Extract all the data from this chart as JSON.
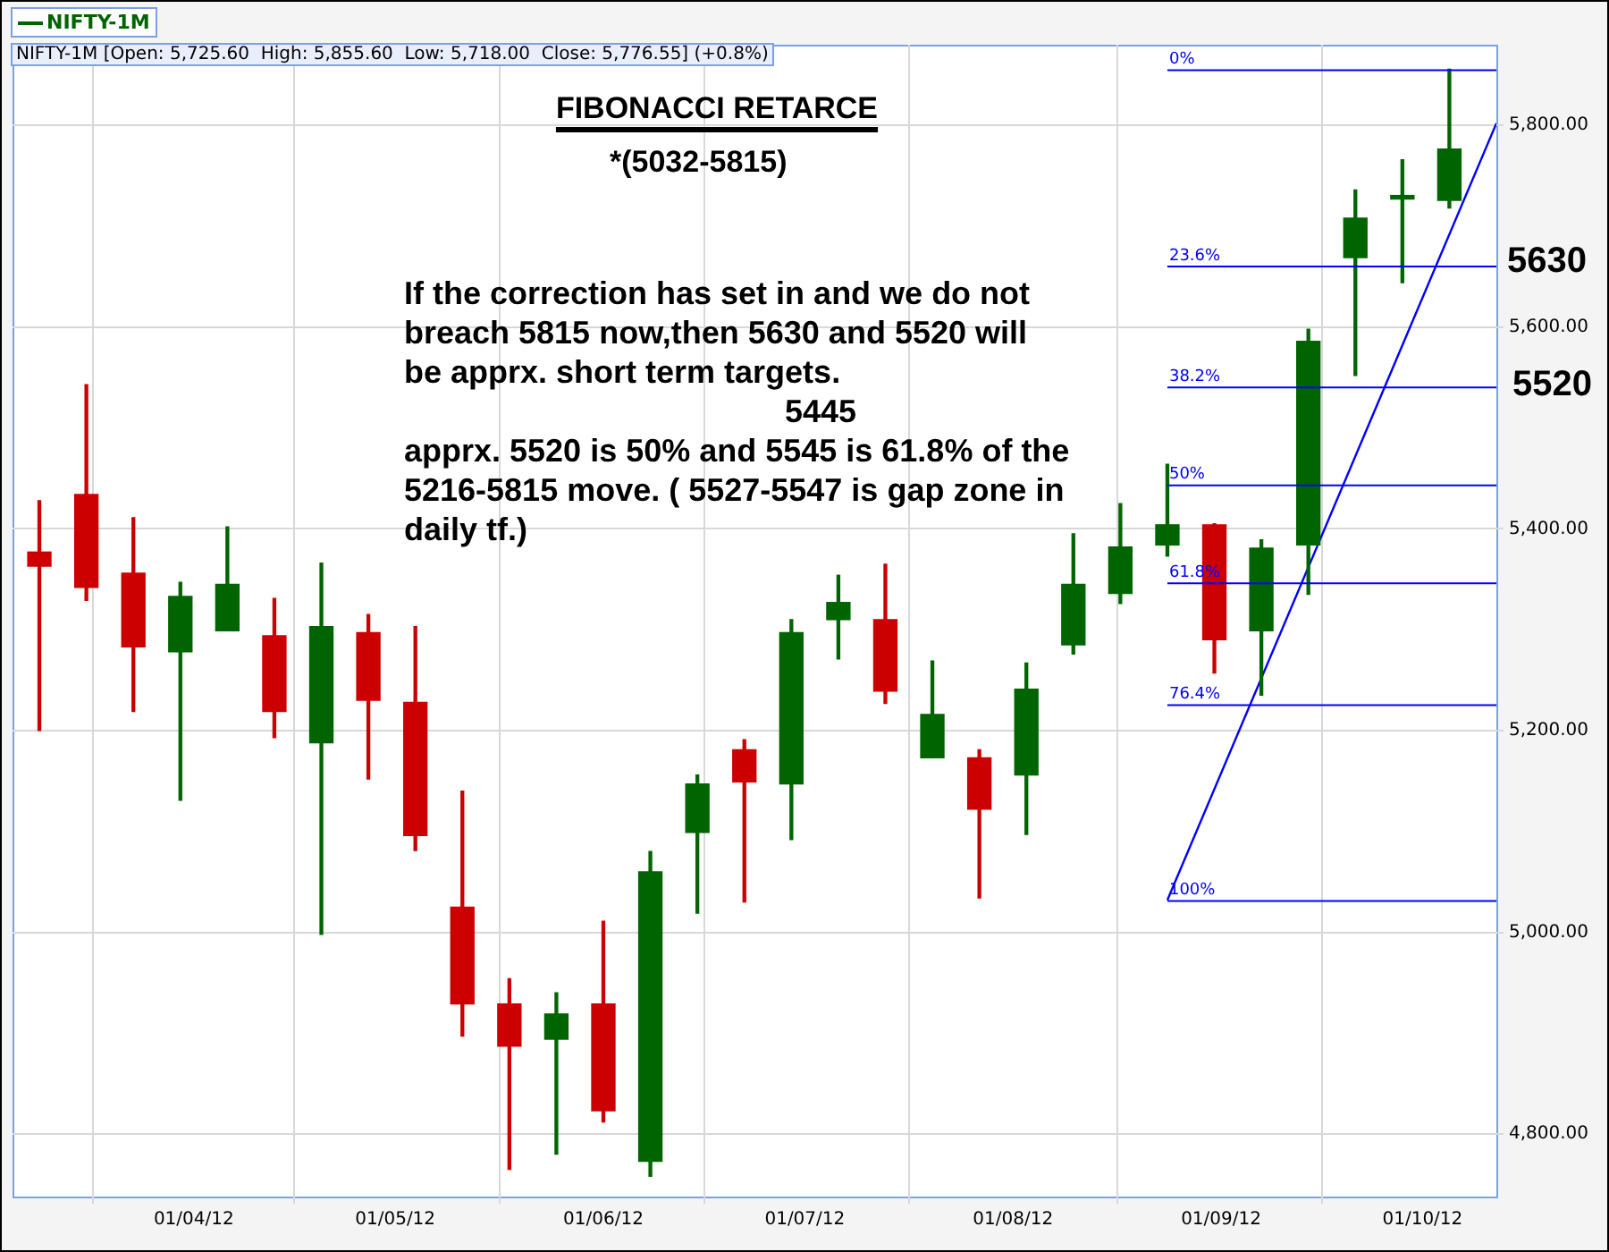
{
  "chart_data": {
    "type": "candlestick",
    "title": "FIBONACCI RETARCE",
    "subtitle": "*(5032-5815)",
    "x": [
      "2012-03-09",
      "2012-03-16",
      "2012-03-23",
      "2012-03-30",
      "2012-04-06",
      "2012-04-13",
      "2012-04-20",
      "2012-04-27",
      "2012-05-04",
      "2012-05-11",
      "2012-05-18",
      "2012-05-25",
      "2012-06-01",
      "2012-06-08",
      "2012-06-15",
      "2012-06-22",
      "2012-06-29",
      "2012-07-06",
      "2012-07-13",
      "2012-07-20",
      "2012-07-27",
      "2012-08-03",
      "2012-08-10",
      "2012-08-17",
      "2012-08-24",
      "2012-08-31",
      "2012-09-07",
      "2012-09-14",
      "2012-09-21",
      "2012-09-28",
      "2012-10-05"
    ],
    "series": [
      {
        "name": "NIFTY-1M",
        "color": "#006400",
        "ohlc": [
          [
            5377,
            5428,
            5200,
            5363
          ],
          [
            5434,
            5543,
            5329,
            5342
          ],
          [
            5356,
            5411,
            5219,
            5283
          ],
          [
            5278,
            5347,
            5131,
            5333
          ],
          [
            5299,
            5402,
            5299,
            5345
          ],
          [
            5294,
            5331,
            5193,
            5219
          ],
          [
            5188,
            5366,
            4998,
            5303
          ],
          [
            5297,
            5315,
            5152,
            5230
          ],
          [
            5228,
            5303,
            5081,
            5096
          ],
          [
            5025,
            5140,
            4897,
            4929
          ],
          [
            4929,
            4954,
            4765,
            4887
          ],
          [
            4894,
            4940,
            4780,
            4919
          ],
          [
            4929,
            5011,
            4812,
            4823
          ],
          [
            4773,
            5080,
            4758,
            5060
          ],
          [
            5099,
            5156,
            5019,
            5147
          ],
          [
            5181,
            5191,
            5030,
            5149
          ],
          [
            5147,
            5310,
            5092,
            5297
          ],
          [
            5310,
            5354,
            5271,
            5327
          ],
          [
            5310,
            5365,
            5227,
            5239
          ],
          [
            5173,
            5269,
            5173,
            5216
          ],
          [
            5173,
            5181,
            5034,
            5122
          ],
          [
            5156,
            5267,
            5097,
            5241
          ],
          [
            5285,
            5395,
            5276,
            5345
          ],
          [
            5336,
            5425,
            5326,
            5382
          ],
          [
            5384,
            5464,
            5373,
            5404
          ],
          [
            5404,
            5405,
            5257,
            5290
          ],
          [
            5299,
            5389,
            5235,
            5381
          ],
          [
            5384,
            5598,
            5335,
            5586
          ],
          [
            5669,
            5736,
            5552,
            5708
          ],
          [
            5727,
            5766,
            5644,
            5730
          ],
          [
            5725.6,
            5855.6,
            5718,
            5776.55
          ]
        ],
        "colors": [
          "#cc0000",
          "#cc0000",
          "#cc0000",
          "#006400",
          "#006400",
          "#cc0000",
          "#006400",
          "#cc0000",
          "#cc0000",
          "#cc0000",
          "#cc0000",
          "#006400",
          "#cc0000",
          "#006400",
          "#006400",
          "#cc0000",
          "#006400",
          "#006400",
          "#cc0000",
          "#006400",
          "#cc0000",
          "#006400",
          "#006400",
          "#006400",
          "#006400",
          "#cc0000",
          "#006400",
          "#006400",
          "#006400",
          "#006400",
          "#006400"
        ]
      },
      {
        "type": "line",
        "color": "#0000ff",
        "x": [
          "2012-08-24",
          "2012-10-12"
        ],
        "values": [
          5032,
          5802
        ]
      }
    ],
    "xlim": [
      "2012-03-05",
      "2012-10-12"
    ],
    "xticks": [
      {
        "value": "2012-04-01",
        "label": "01/04/12"
      },
      {
        "value": "2012-05-01",
        "label": "01/05/12"
      },
      {
        "value": "2012-06-01",
        "label": "01/06/12"
      },
      {
        "value": "2012-07-01",
        "label": "01/07/12"
      },
      {
        "value": "2012-08-01",
        "label": "01/08/12"
      },
      {
        "value": "2012-09-01",
        "label": "01/09/12"
      },
      {
        "value": "2012-10-01",
        "label": "01/10/12"
      }
    ],
    "ylim": [
      4738,
      5880
    ],
    "yticks": [
      {
        "value": 4800,
        "label": "4,800.00"
      },
      {
        "value": 5000,
        "label": "5,000.00"
      },
      {
        "value": 5200,
        "label": "5,200.00"
      },
      {
        "value": 5400,
        "label": "5,400.00"
      },
      {
        "value": 5600,
        "label": "5,600.00"
      },
      {
        "value": 5800,
        "label": "5,800.00"
      }
    ],
    "grid": true,
    "legend": "top left",
    "ref_lines": [
      {
        "axis": "y",
        "value": 5855.6,
        "color": "#0000ff"
      },
      {
        "axis": "y",
        "value": 5661,
        "color": "#0000ff"
      },
      {
        "axis": "y",
        "value": 5541,
        "color": "#0000ff"
      },
      {
        "axis": "y",
        "value": 5444,
        "color": "#0000ff"
      },
      {
        "axis": "y",
        "value": 5347,
        "color": "#0000ff"
      },
      {
        "axis": "y",
        "value": 5226,
        "color": "#0000ff"
      },
      {
        "axis": "y",
        "value": 5032,
        "color": "#0000ff"
      }
    ],
    "annotations": [
      "NIFTY-1M [Open: 5,725.60  High: 5,855.60  Low: 5,718.00  Close: 5,776.55] (+0.8%)",
      "If the correction has set in and we do not breach 5815 now,then 5630 and 5520 will be apprx. short term targets.",
      "5445",
      "apprx. 5520 is 50% and 5545 is 61.8% of the 5216-5815 move. ( 5527-5547 is gap zone in daily tf.)",
      "5630",
      "5520",
      {
        "text": "0%",
        "x": "2012-08-24",
        "y": 5855.6
      },
      {
        "text": "23.6%",
        "x": "2012-08-24",
        "y": 5661
      },
      {
        "text": "38.2%",
        "x": "2012-08-24",
        "y": 5541
      },
      {
        "text": "50%",
        "x": "2012-08-24",
        "y": 5444
      },
      {
        "text": "61.8%",
        "x": "2012-08-24",
        "y": 5347
      },
      {
        "text": "76.4%",
        "x": "2012-08-24",
        "y": 5226
      },
      {
        "text": "100%",
        "x": "2012-08-24",
        "y": 5032
      }
    ]
  }
}
